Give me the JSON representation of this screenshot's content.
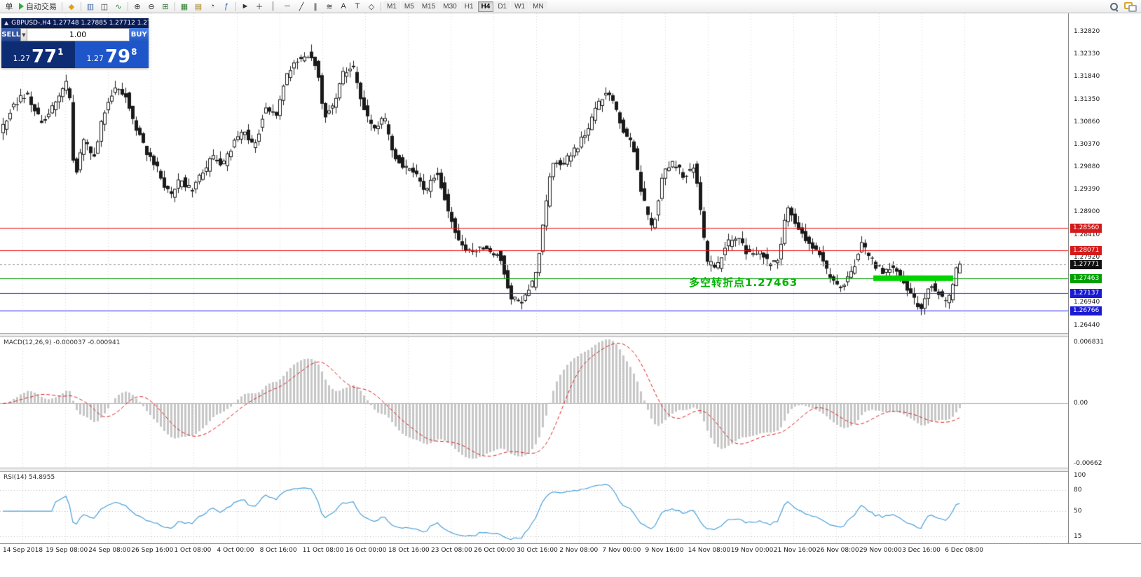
{
  "toolbar": {
    "order_label": "单",
    "autotrading_label": "自动交易",
    "icons": [
      {
        "name": "new-order-icon",
        "glyph": "◆",
        "color": "#e0a020"
      },
      {
        "name": "sep"
      },
      {
        "name": "bar-chart-icon",
        "glyph": "▥",
        "color": "#4a6da8"
      },
      {
        "name": "candlestick-icon",
        "glyph": "◫",
        "color": "#333333"
      },
      {
        "name": "line-chart-icon",
        "glyph": "∿",
        "color": "#2e7d32"
      },
      {
        "name": "sep"
      },
      {
        "name": "zoom-in-icon",
        "glyph": "⊕",
        "color": "#333333"
      },
      {
        "name": "zoom-out-icon",
        "glyph": "⊖",
        "color": "#333333"
      },
      {
        "name": "tile-windows-icon",
        "glyph": "⊞",
        "color": "#3a6f3a"
      },
      {
        "name": "sep"
      },
      {
        "name": "new-chart-icon",
        "glyph": "▦",
        "color": "#2e7d32"
      },
      {
        "name": "profiles-icon",
        "glyph": "▤",
        "color": "#a08020"
      },
      {
        "name": "clock-icon",
        "glyph": "◔",
        "color": "#444444"
      },
      {
        "name": "indicator-list-icon",
        "glyph": "ƒ",
        "color": "#1c5fae"
      },
      {
        "name": "sep"
      },
      {
        "name": "cursor-icon",
        "glyph": "►",
        "color": "#333333"
      },
      {
        "name": "crosshair-icon",
        "glyph": "＋",
        "color": "#333333"
      },
      {
        "name": "vertical-line-icon",
        "glyph": "│",
        "color": "#333333"
      },
      {
        "name": "horizontal-line-icon",
        "glyph": "─",
        "color": "#333333"
      },
      {
        "name": "trendline-icon",
        "glyph": "╱",
        "color": "#333333"
      },
      {
        "name": "channel-icon",
        "glyph": "∥",
        "color": "#333333"
      },
      {
        "name": "fibonacci-icon",
        "glyph": "≋",
        "color": "#333333"
      },
      {
        "name": "text-icon",
        "glyph": "A",
        "color": "#333333"
      },
      {
        "name": "label-icon",
        "glyph": "T",
        "color": "#333333"
      },
      {
        "name": "shapes-icon",
        "glyph": "◇",
        "color": "#333333"
      },
      {
        "name": "sep"
      }
    ],
    "timeframes": [
      "M1",
      "M5",
      "M15",
      "M30",
      "H1",
      "H4",
      "D1",
      "W1",
      "MN"
    ],
    "active_timeframe": "H4"
  },
  "trade_panel": {
    "header": "GBPUSD-,H4  1.27748 1.27885 1.27712 1.27771",
    "sell_label": "SELL",
    "buy_label": "BUY",
    "volume": "1.00",
    "dropdown_glyph": "▼",
    "sell_price_small": "1.27",
    "sell_price_big": "77",
    "sell_price_sup": "1",
    "buy_price_small": "1.27",
    "buy_price_big": "79",
    "buy_price_sup": "8"
  },
  "annotation": {
    "text": "多空转折点1.27463",
    "color": "#00b400"
  },
  "chart_data": [
    {
      "type": "candlestick",
      "symbol": "GBPUSD-",
      "timeframe": "H4",
      "ohlc_display": {
        "open": "1.27748",
        "high": "1.27885",
        "low": "1.27712",
        "close": "1.27771"
      },
      "ylim": [
        1.26273,
        1.33216
      ],
      "bar_spacing": 5,
      "y_ticks": [
        "1.32820",
        "1.32330",
        "1.31840",
        "1.31350",
        "1.30860",
        "1.30370",
        "1.29880",
        "1.29390",
        "1.28900",
        "1.28410",
        "1.27920",
        "1.27430",
        "1.26940",
        "1.26440"
      ],
      "x_ticks": [
        "14 Sep 2018",
        "19 Sep 08:00",
        "24 Sep 08:00",
        "26 Sep 16:00",
        "1 Oct 08:00",
        "4 Oct 00:00",
        "8 Oct 16:00",
        "11 Oct 08:00",
        "16 Oct 00:00",
        "18 Oct 16:00",
        "23 Oct 08:00",
        "26 Oct 00:00",
        "30 Oct 16:00",
        "2 Nov 08:00",
        "7 Nov 00:00",
        "9 Nov 16:00",
        "14 Nov 08:00",
        "19 Nov 00:00",
        "21 Nov 16:00",
        "26 Nov 08:00",
        "29 Nov 00:00",
        "3 Dec 16:00",
        "6 Dec 08:00"
      ],
      "anchors": [
        [
          4,
          1.30688
        ],
        [
          20,
          1.31221
        ],
        [
          40,
          1.3145
        ],
        [
          60,
          1.3084
        ],
        [
          80,
          1.31221
        ],
        [
          100,
          1.31754
        ],
        [
          108,
          1.29577
        ],
        [
          122,
          1.3046
        ],
        [
          135,
          1.30003
        ],
        [
          150,
          1.31069
        ],
        [
          165,
          1.31602
        ],
        [
          180,
          1.31495
        ],
        [
          195,
          1.30764
        ],
        [
          210,
          1.30231
        ],
        [
          225,
          1.29881
        ],
        [
          245,
          1.29211
        ],
        [
          260,
          1.29622
        ],
        [
          275,
          1.29363
        ],
        [
          290,
          1.29698
        ],
        [
          305,
          1.30064
        ],
        [
          320,
          1.29912
        ],
        [
          335,
          1.30368
        ],
        [
          350,
          1.30673
        ],
        [
          365,
          1.30277
        ],
        [
          380,
          1.31191
        ],
        [
          395,
          1.30977
        ],
        [
          410,
          1.318
        ],
        [
          425,
          1.32196
        ],
        [
          440,
          1.32348
        ],
        [
          455,
          1.32043
        ],
        [
          465,
          1.30947
        ],
        [
          478,
          1.31221
        ],
        [
          492,
          1.31952
        ],
        [
          506,
          1.32043
        ],
        [
          520,
          1.31191
        ],
        [
          535,
          1.30673
        ],
        [
          550,
          1.30947
        ],
        [
          565,
          1.30125
        ],
        [
          580,
          1.29881
        ],
        [
          595,
          1.29744
        ],
        [
          610,
          1.29363
        ],
        [
          625,
          1.2982
        ],
        [
          640,
          1.29059
        ],
        [
          655,
          1.28298
        ],
        [
          670,
          1.27993
        ],
        [
          685,
          1.28145
        ],
        [
          700,
          1.28069
        ],
        [
          715,
          1.27993
        ],
        [
          730,
          1.27079
        ],
        [
          742,
          1.26927
        ],
        [
          755,
          1.27171
        ],
        [
          765,
          1.27414
        ],
        [
          778,
          1.28709
        ],
        [
          790,
          1.30034
        ],
        [
          805,
          1.29973
        ],
        [
          820,
          1.30216
        ],
        [
          835,
          1.30521
        ],
        [
          850,
          1.31038
        ],
        [
          865,
          1.31511
        ],
        [
          877,
          1.31343
        ],
        [
          890,
          1.30734
        ],
        [
          905,
          1.30353
        ],
        [
          920,
          1.29135
        ],
        [
          933,
          1.28541
        ],
        [
          948,
          1.29729
        ],
        [
          963,
          1.29973
        ],
        [
          978,
          1.29668
        ],
        [
          993,
          1.29957
        ],
        [
          1010,
          1.27841
        ],
        [
          1025,
          1.27689
        ],
        [
          1040,
          1.28221
        ],
        [
          1055,
          1.28298
        ],
        [
          1070,
          1.27993
        ],
        [
          1085,
          1.28069
        ],
        [
          1100,
          1.27765
        ],
        [
          1113,
          1.27841
        ],
        [
          1125,
          1.28983
        ],
        [
          1140,
          1.28602
        ],
        [
          1155,
          1.28221
        ],
        [
          1170,
          1.28069
        ],
        [
          1185,
          1.2746
        ],
        [
          1200,
          1.27308
        ],
        [
          1215,
          1.2746
        ],
        [
          1230,
          1.28221
        ],
        [
          1245,
          1.27841
        ],
        [
          1260,
          1.27612
        ],
        [
          1275,
          1.27689
        ],
        [
          1290,
          1.2746
        ],
        [
          1305,
          1.27003
        ],
        [
          1317,
          1.26775
        ],
        [
          1330,
          1.27384
        ],
        [
          1343,
          1.27079
        ],
        [
          1355,
          1.26927
        ],
        [
          1366,
          1.27612
        ],
        [
          1369,
          1.27771
        ]
      ],
      "hlines": [
        {
          "price": 1.2856,
          "label": "1.28560",
          "color": "#ee1111",
          "badge": "#d41a1a"
        },
        {
          "price": 1.28071,
          "label": "1.28071",
          "color": "#ee1111",
          "badge": "#d41a1a"
        },
        {
          "price": 1.27463,
          "label": "1.27463",
          "color": "#009900",
          "badge": "#00a000"
        },
        {
          "price": 1.27137,
          "label": "1.27137",
          "color": "#2222ee",
          "badge": "#1a1ad4"
        },
        {
          "price": 1.26766,
          "label": "1.26766",
          "color": "#2222ee",
          "badge": "#1a1ad4"
        }
      ],
      "current_price": {
        "value": 1.27771,
        "label": "1.27771",
        "badge": "#111111"
      },
      "highlight_bar": {
        "price": 1.27463,
        "x_from": 1246,
        "x_to": 1360,
        "color": "#00d300"
      }
    },
    {
      "type": "macd",
      "label": "MACD(12,26,9) -0.000037 -0.000941",
      "params": [
        12,
        26,
        9
      ],
      "values_display": [
        "-0.000037",
        "-0.000941"
      ],
      "ylim": [
        -0.00662,
        0.006831
      ],
      "y_tick_labels": {
        "top": "0.006831",
        "zero": "0.00",
        "bottom": "-0.00662"
      },
      "histogram_color": "#c6c6c6",
      "signal_color": "#dd2222"
    },
    {
      "type": "rsi",
      "label": "RSI(14) 54.8955",
      "period": 14,
      "value": 54.8955,
      "levels": [
        "100",
        "80",
        "50",
        "15"
      ],
      "level_values": [
        100,
        80,
        50,
        15
      ],
      "ylim": [
        5,
        105
      ],
      "line_color": "#4aa0d8"
    }
  ]
}
